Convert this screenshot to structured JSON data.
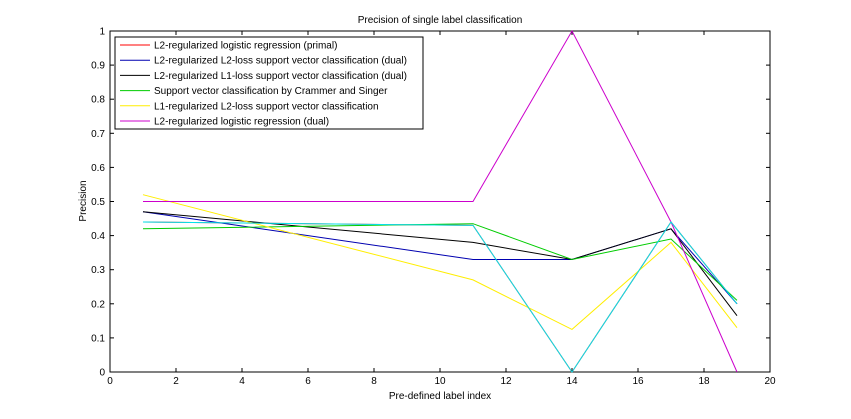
{
  "chart_data": {
    "type": "line",
    "title": "Precision of single label classification",
    "xlabel": "Pre-defined label index",
    "ylabel": "Precision",
    "xlim": [
      0,
      20
    ],
    "ylim": [
      0,
      1
    ],
    "xticks": [
      "0",
      "2",
      "4",
      "6",
      "8",
      "10",
      "12",
      "14",
      "16",
      "18",
      "20"
    ],
    "yticks": [
      "0",
      "0.1",
      "0.2",
      "0.3",
      "0.4",
      "0.5",
      "0.6",
      "0.7",
      "0.8",
      "0.9",
      "1"
    ],
    "grid": false,
    "legend_position": "top-left",
    "x": [
      1,
      11,
      14,
      17,
      19
    ],
    "series": [
      {
        "name": "L2-regularized logistic regression (primal)",
        "color": "#ff0000",
        "values": [
          0.44,
          0.43,
          0.0,
          0.44,
          0.2
        ]
      },
      {
        "name": "L2-regularized L2-loss support vector classification (dual)",
        "color": "#0000b0",
        "values": [
          0.47,
          0.33,
          0.33,
          0.42,
          0.2
        ]
      },
      {
        "name": "L2-regularized L1-loss support vector classification (dual)",
        "color": "#000000",
        "values": [
          0.47,
          0.38,
          0.33,
          0.42,
          0.165
        ]
      },
      {
        "name": "Support vector classification by Crammer and Singer",
        "color": "#00cc00",
        "values": [
          0.42,
          0.435,
          0.33,
          0.39,
          0.21
        ]
      },
      {
        "name": "L1-regularized L2-loss support vector classification",
        "color": "#ffee00",
        "values": [
          0.52,
          0.27,
          0.125,
          0.38,
          0.13
        ]
      },
      {
        "name": "L2-regularized logistic regression (dual)",
        "color": "#cc00cc",
        "values": [
          0.5,
          0.5,
          1.0,
          0.44,
          0.0
        ]
      },
      {
        "name": "",
        "color": "#00e5ee",
        "values": [
          0.44,
          0.43,
          0.0,
          0.44,
          0.2
        ]
      }
    ]
  }
}
